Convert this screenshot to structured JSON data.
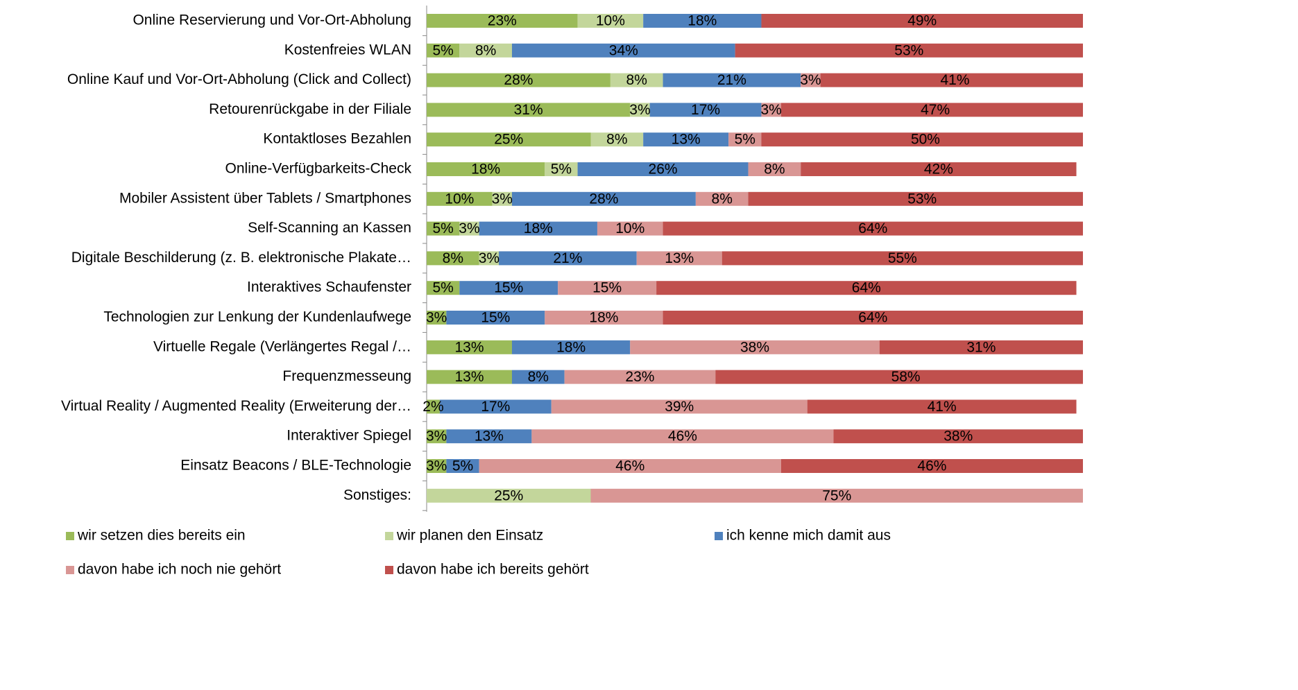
{
  "chart_data": {
    "type": "stacked-bar-horizontal",
    "categories": [
      "Online Reservierung und Vor-Ort-Abholung",
      "Kostenfreies WLAN",
      "Online Kauf und Vor-Ort-Abholung (Click and Collect)",
      "Retourenrückgabe in der Filiale",
      "Kontaktloses Bezahlen",
      "Online-Verfügbarkeits-Check",
      "Mobiler Assistent über Tablets / Smartphones",
      "Self-Scanning an Kassen",
      "Digitale Beschilderung (z. B. elektronische Plakate…",
      "Interaktives Schaufenster",
      "Technologien zur Lenkung der Kundenlaufwege",
      "Virtuelle Regale (Verlängertes Regal /…",
      "Frequenzmesseung",
      "Virtual Reality / Augmented Reality (Erweiterung der…",
      "Interaktiver Spiegel",
      "Einsatz Beacons / BLE-Technologie",
      "Sonstiges:"
    ],
    "xlim": [
      0,
      100
    ],
    "legend": "bottom",
    "series": [
      {
        "name": "wir setzen dies bereits ein",
        "color": "#9bbb59",
        "values": [
          23,
          5,
          28,
          31,
          25,
          18,
          10,
          5,
          8,
          5,
          3,
          13,
          13,
          2,
          3,
          3,
          null
        ],
        "value_labels": [
          "23%",
          "5%",
          "28%",
          "31%",
          "25%",
          "18%",
          "10%",
          "5%",
          "8%",
          "5%",
          "3%",
          "13%",
          "13%",
          "2%",
          "3%",
          "3%",
          null
        ]
      },
      {
        "name": "wir planen den Einsatz",
        "color": "#c3d69b",
        "values": [
          10,
          8,
          8,
          3,
          8,
          5,
          3,
          3,
          3,
          null,
          null,
          null,
          null,
          null,
          null,
          null,
          25
        ],
        "value_labels": [
          "10%",
          "8%",
          "8%",
          "3%",
          "8%",
          "5%",
          "3%",
          "3%",
          "3%",
          null,
          null,
          null,
          null,
          null,
          null,
          null,
          "25%"
        ]
      },
      {
        "name": "ich kenne mich damit aus",
        "color": "#4f81bd",
        "values": [
          18,
          34,
          21,
          17,
          13,
          26,
          28,
          18,
          21,
          15,
          15,
          18,
          8,
          17,
          13,
          5,
          null
        ],
        "value_labels": [
          "18%",
          "34%",
          "21%",
          "17%",
          "13%",
          "26%",
          "28%",
          "18%",
          "21%",
          "15%",
          "15%",
          "18%",
          "8%",
          "17%",
          "13%",
          "5%",
          null
        ]
      },
      {
        "name": "davon habe ich noch nie gehört",
        "color": "#d99694",
        "values": [
          null,
          null,
          3,
          3,
          5,
          8,
          8,
          10,
          13,
          15,
          18,
          38,
          23,
          39,
          46,
          46,
          75
        ],
        "value_labels": [
          null,
          null,
          "3%",
          "3%",
          "5%",
          "8%",
          "8%",
          "10%",
          "13%",
          "15%",
          "18%",
          "38%",
          "23%",
          "39%",
          "46%",
          "46%",
          "75%"
        ]
      },
      {
        "name": "davon habe ich bereits gehört",
        "color": "#c0504d",
        "values": [
          49,
          53,
          41,
          47,
          50,
          42,
          53,
          64,
          55,
          64,
          64,
          31,
          58,
          41,
          38,
          46,
          null
        ],
        "value_labels": [
          "49%",
          "53%",
          "41%",
          "47%",
          "50%",
          "42%",
          "53%",
          "64%",
          "55%",
          "64%",
          "64%",
          "31%",
          "58%",
          "41%",
          "38%",
          "46%",
          null
        ]
      }
    ]
  }
}
